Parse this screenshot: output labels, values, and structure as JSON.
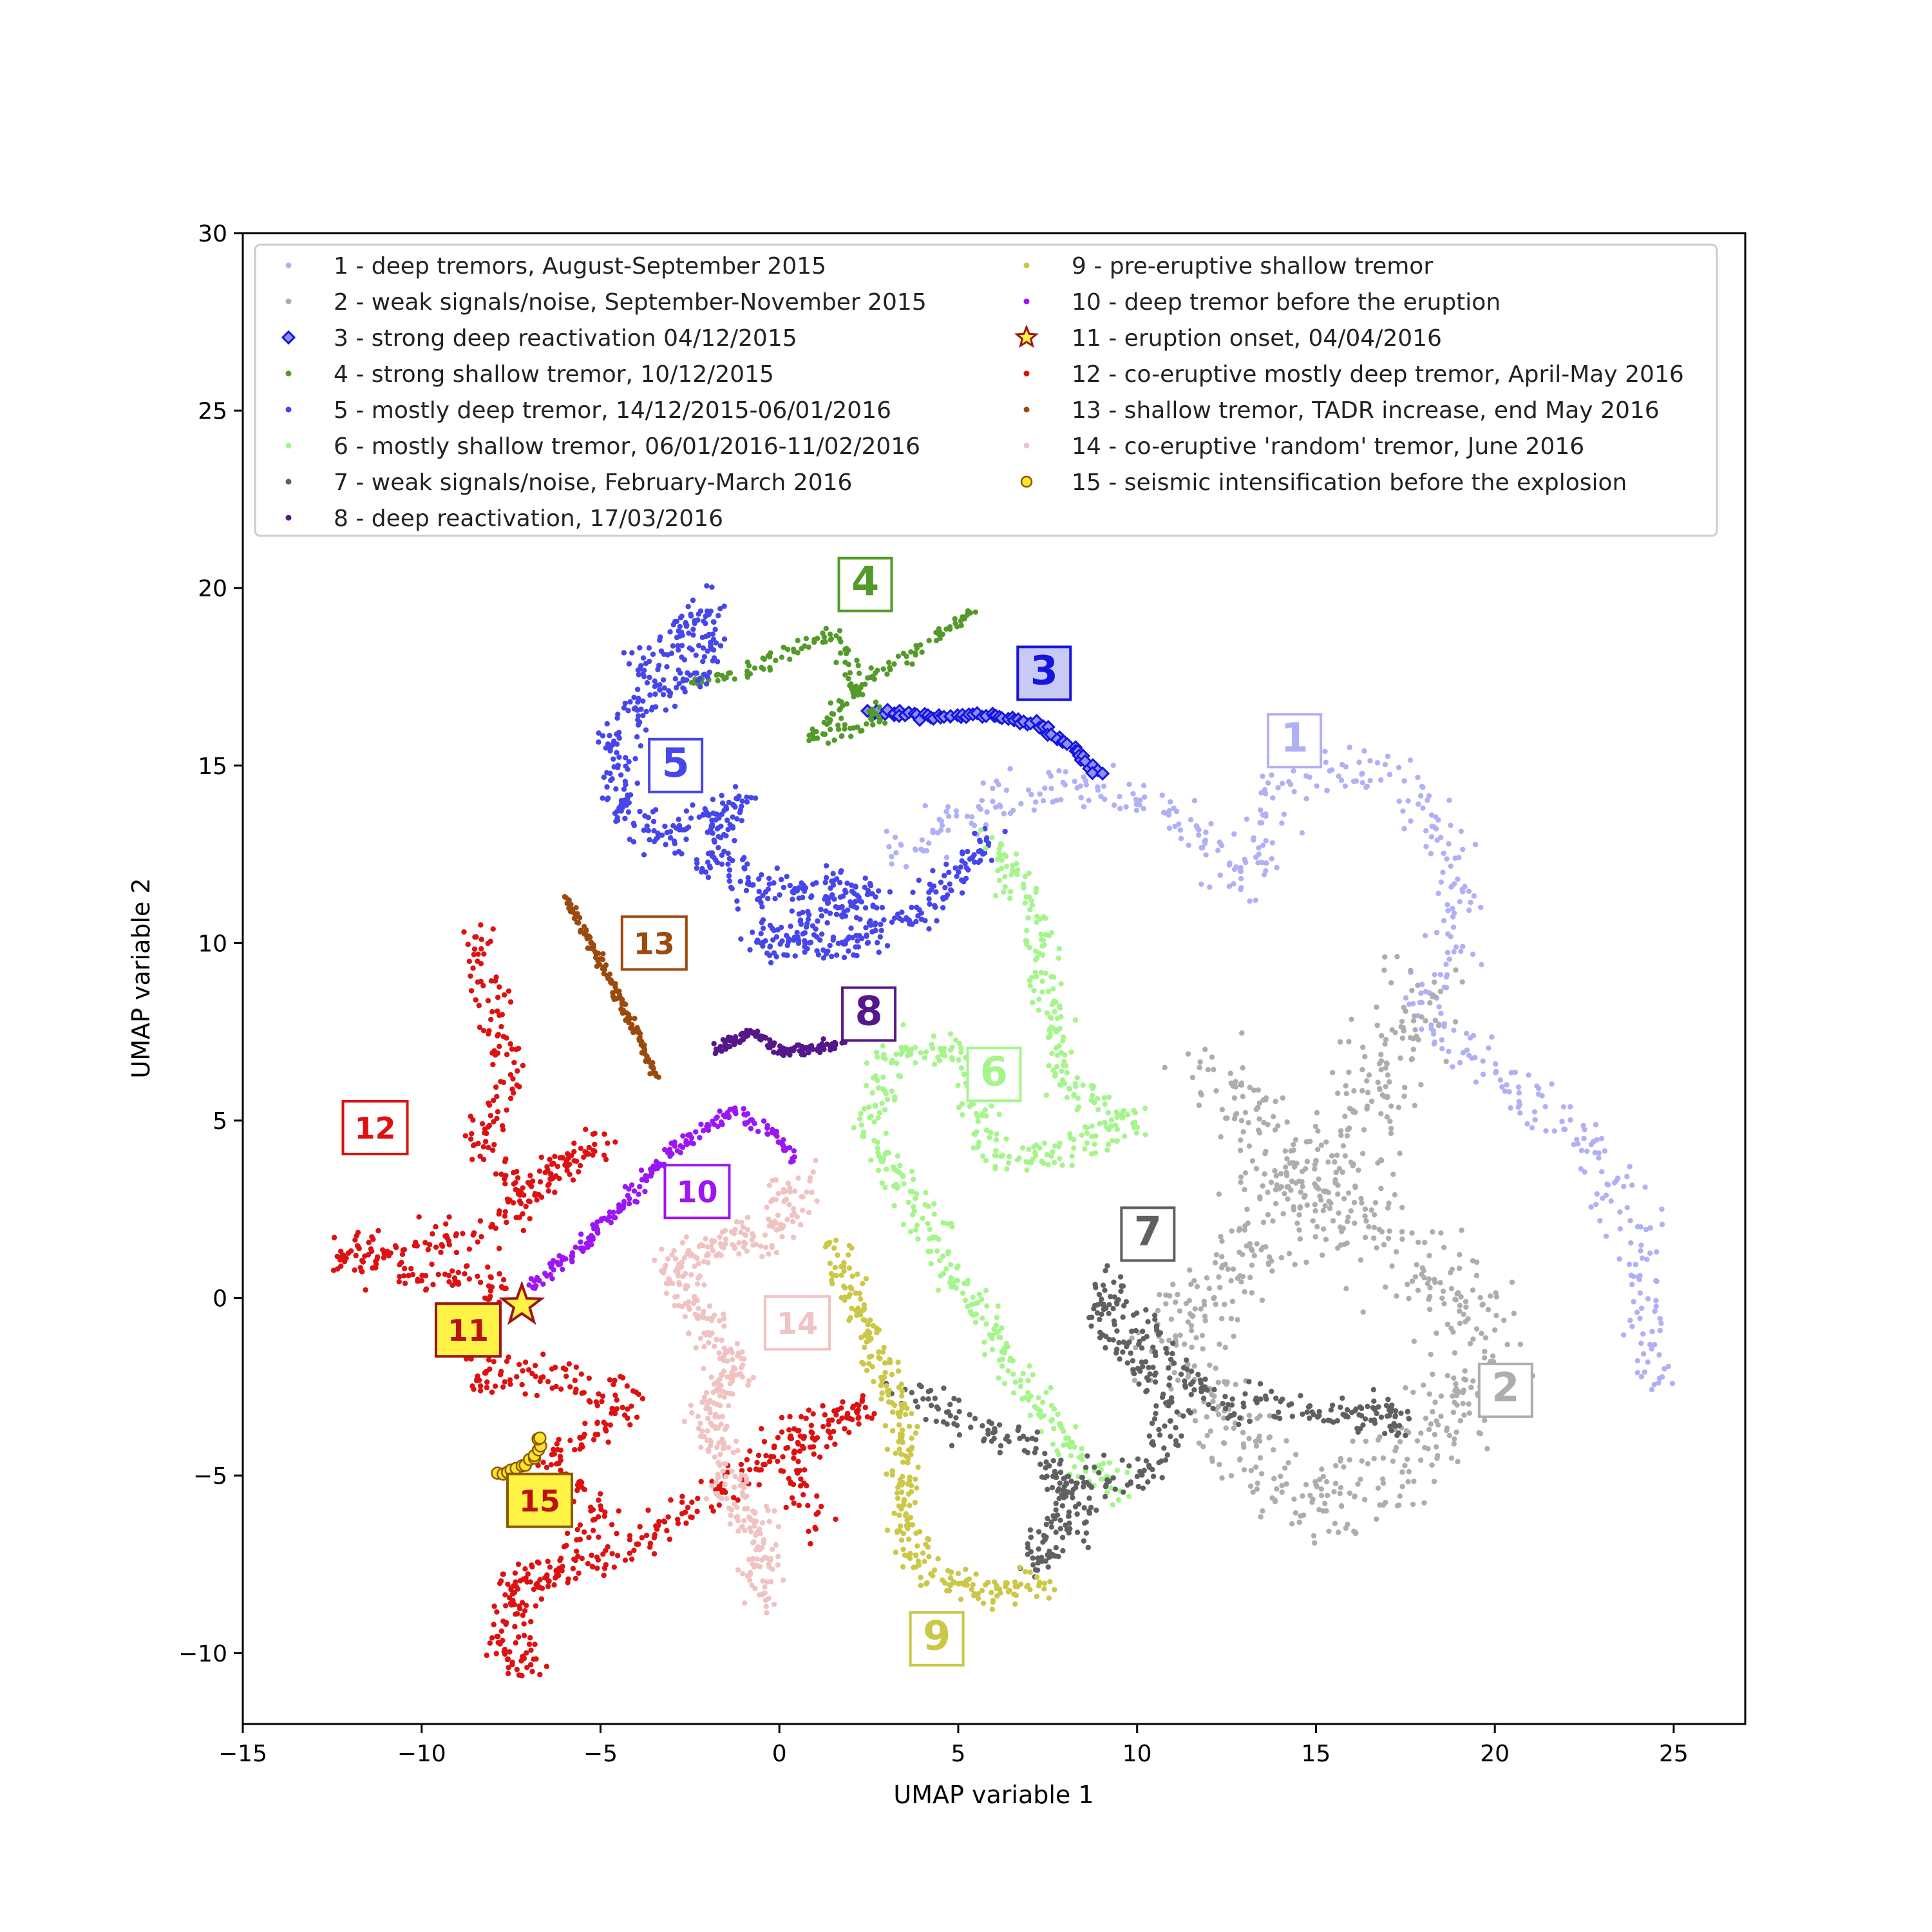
{
  "chart_data": {
    "type": "scatter",
    "xlabel": "UMAP variable 1",
    "ylabel": "UMAP variable 2",
    "xlim": [
      -15,
      27
    ],
    "ylim": [
      -12,
      30
    ],
    "xticks": [
      -15,
      -10,
      -5,
      0,
      5,
      10,
      15,
      20,
      25
    ],
    "yticks": [
      -10,
      -5,
      0,
      5,
      10,
      15,
      20,
      25,
      30
    ],
    "xtick_labels": [
      "−15",
      "−10",
      "−5",
      "0",
      "5",
      "10",
      "15",
      "20",
      "25"
    ],
    "ytick_labels": [
      "−10",
      "−5",
      "0",
      "5",
      "10",
      "15",
      "20",
      "25",
      "30"
    ],
    "grid": false,
    "legend_position": "top",
    "series": [
      {
        "name": "1 - deep tremors, August-September 2015",
        "label": "1",
        "color": "#b0b0f6",
        "marker": "dot",
        "path": [
          [
            3,
            12.5
          ],
          [
            6,
            14
          ],
          [
            9,
            14.5
          ],
          [
            12,
            13
          ],
          [
            13,
            11.5
          ],
          [
            14,
            14.5
          ],
          [
            16,
            15
          ],
          [
            18,
            14
          ],
          [
            19,
            11
          ],
          [
            18,
            8
          ],
          [
            21,
            5.5
          ],
          [
            23,
            4
          ],
          [
            24,
            2
          ],
          [
            24.5,
            -2.5
          ]
        ],
        "spread": 0.7,
        "count": 500,
        "label_at": [
          14.4,
          15.7
        ],
        "label_style": "plain"
      },
      {
        "name": "2 - weak signals/noise, September-November 2015",
        "label": "2",
        "color": "#adadad",
        "marker": "dot",
        "path": [
          [
            12,
            6.5
          ],
          [
            14,
            4
          ],
          [
            16,
            2
          ],
          [
            18,
            1
          ],
          [
            20,
            -1
          ],
          [
            19,
            -3
          ],
          [
            17,
            -5
          ],
          [
            15,
            -6
          ],
          [
            12,
            -3
          ],
          [
            10.8,
            -1
          ],
          [
            13,
            1
          ],
          [
            15,
            3.5
          ],
          [
            17,
            6
          ],
          [
            18,
            9
          ]
        ],
        "spread": 1.3,
        "count": 800,
        "label_at": [
          20.3,
          -2.6
        ],
        "label_style": "plain"
      },
      {
        "name": "3 - strong deep reactivation 04/12/2015",
        "label": "3",
        "color": "#1515e0",
        "marker": "diamond",
        "path": [
          [
            2.5,
            16.5
          ],
          [
            4,
            16.4
          ],
          [
            6,
            16.4
          ],
          [
            7.2,
            16.2
          ],
          [
            8.2,
            15.5
          ],
          [
            9,
            14.7
          ]
        ],
        "spread": 0.1,
        "count": 70,
        "label_at": [
          7.4,
          17.6
        ],
        "label_style": "filled",
        "label_fill": "#c9c9f5"
      },
      {
        "name": "4 - strong shallow tremor, 10/12/2015",
        "label": "4",
        "color": "#549a2a",
        "marker": "dot",
        "path": [
          [
            -2.5,
            17.3
          ],
          [
            -0.5,
            17.8
          ],
          [
            1.5,
            18.8
          ],
          [
            2,
            17.5
          ],
          [
            2.8,
            16.2
          ],
          [
            0.8,
            15.8
          ],
          [
            2.4,
            17.4
          ],
          [
            4,
            18.3
          ],
          [
            5.5,
            19.5
          ]
        ],
        "spread": 0.25,
        "count": 200,
        "label_at": [
          2.4,
          20.1
        ],
        "label_style": "plain"
      },
      {
        "name": "5 - mostly deep tremor, 14/12/2015-06/01/2016",
        "label": "5",
        "color": "#4646ea",
        "marker": "dot",
        "path": [
          [
            -4,
            17.5
          ],
          [
            -3.5,
            18
          ],
          [
            -2,
            19.5
          ],
          [
            -2,
            18
          ],
          [
            -3.5,
            17
          ],
          [
            -4.5,
            16
          ],
          [
            -4.5,
            14
          ],
          [
            -3.5,
            13
          ],
          [
            -2,
            13.5
          ],
          [
            -1,
            14
          ],
          [
            -2,
            12.5
          ],
          [
            -0.5,
            11.5
          ],
          [
            1,
            11.5
          ],
          [
            2.5,
            11.5
          ],
          [
            -0.5,
            10
          ],
          [
            2,
            10
          ],
          [
            4,
            11
          ],
          [
            6,
            13
          ]
        ],
        "spread": 0.55,
        "count": 700,
        "label_at": [
          -2.9,
          15.0
        ],
        "label_style": "plain"
      },
      {
        "name": "6 - mostly shallow tremor, 06/01/2016-11/02/2016",
        "label": "6",
        "color": "#a5f58c",
        "marker": "dot",
        "path": [
          [
            6,
            13
          ],
          [
            7,
            11
          ],
          [
            7.5,
            8.5
          ],
          [
            8,
            6
          ],
          [
            10,
            5
          ],
          [
            8,
            4
          ],
          [
            6,
            4
          ],
          [
            5,
            7
          ],
          [
            3,
            7
          ],
          [
            2.5,
            4.5
          ],
          [
            4,
            2.5
          ],
          [
            4.5,
            1
          ],
          [
            5.5,
            0
          ],
          [
            6.5,
            -2
          ],
          [
            8,
            -4
          ],
          [
            9.5,
            -5.5
          ]
        ],
        "spread": 0.5,
        "count": 600,
        "label_at": [
          6.0,
          6.3
        ],
        "label_style": "plain"
      },
      {
        "name": "7 - weak signals/noise, February-March 2016",
        "label": "7",
        "color": "#606060",
        "marker": "dot",
        "path": [
          [
            3.5,
            -2.5
          ],
          [
            5,
            -3.5
          ],
          [
            7,
            -4
          ],
          [
            8.5,
            -6
          ],
          [
            7,
            -7.5
          ],
          [
            8.5,
            -5
          ],
          [
            10.5,
            -5
          ],
          [
            11,
            -3
          ],
          [
            9,
            -1
          ],
          [
            9,
            0.5
          ],
          [
            11,
            -2
          ],
          [
            12.5,
            -3
          ],
          [
            14,
            -3
          ],
          [
            17.5,
            -3.5
          ],
          [
            16,
            -3
          ]
        ],
        "spread": 0.55,
        "count": 500,
        "label_at": [
          10.3,
          1.8
        ],
        "label_style": "plain"
      },
      {
        "name": "8 - deep reactivation, 17/03/2016",
        "label": "8",
        "color": "#55178a",
        "marker": "dot",
        "path": [
          [
            -1.8,
            7
          ],
          [
            -0.8,
            7.5
          ],
          [
            0,
            7
          ],
          [
            1,
            7
          ],
          [
            1.7,
            7.2
          ]
        ],
        "spread": 0.15,
        "count": 120,
        "label_at": [
          2.5,
          8.0
        ],
        "label_style": "plain"
      },
      {
        "name": "9 - pre-eruptive shallow tremor",
        "label": "9",
        "color": "#cbc747",
        "marker": "dot",
        "path": [
          [
            1.5,
            1.5
          ],
          [
            2.5,
            -1
          ],
          [
            3.5,
            -3.5
          ],
          [
            3.5,
            -5.5
          ],
          [
            3.8,
            -7.5
          ],
          [
            5.5,
            -8.3
          ],
          [
            7.5,
            -8
          ]
        ],
        "spread": 0.45,
        "count": 300,
        "label_at": [
          4.4,
          -9.6
        ],
        "label_style": "plain"
      },
      {
        "name": "10 - deep tremor before the eruption",
        "label": "10",
        "color": "#9b16f2",
        "marker": "dot",
        "path": [
          [
            -7,
            0.3
          ],
          [
            -5.5,
            1.5
          ],
          [
            -4.5,
            2.5
          ],
          [
            -3,
            4.2
          ],
          [
            -1.2,
            5.3
          ],
          [
            0,
            4.5
          ],
          [
            0.4,
            3.8
          ]
        ],
        "spread": 0.2,
        "count": 200,
        "label_at": [
          -2.3,
          3.0
        ],
        "label_style": "plain"
      },
      {
        "name": "11 - eruption onset, 04/04/2016",
        "label": "11",
        "color": "#a01414",
        "marker": "star",
        "fill": "#fff445",
        "path": [
          [
            -7.2,
            -0.2
          ]
        ],
        "spread": 0,
        "count": 1,
        "label_at": [
          -8.7,
          -0.9
        ],
        "label_style": "filled",
        "label_fill": "#fff445",
        "label_color": "#bb1111"
      },
      {
        "name": "12 - co-eruptive mostly deep tremor, April-May 2016",
        "label": "12",
        "color": "#dd1111",
        "marker": "dot",
        "path": [
          [
            -8.5,
            10.5
          ],
          [
            -8,
            8
          ],
          [
            -7.5,
            6
          ],
          [
            -8.5,
            4.5
          ],
          [
            -7,
            3
          ],
          [
            -5,
            4.5
          ],
          [
            -8,
            2
          ],
          [
            -10,
            1.5
          ],
          [
            -12.5,
            1.3
          ],
          [
            -10,
            0.5
          ],
          [
            -8,
            0.5
          ],
          [
            -8.5,
            -2.5
          ],
          [
            -7,
            -2
          ],
          [
            -5,
            -2.5
          ],
          [
            -4,
            -3
          ],
          [
            -6.5,
            -4.5
          ],
          [
            -5,
            -6
          ],
          [
            -5.5,
            -7
          ],
          [
            -7,
            -8
          ],
          [
            -8,
            -9.5
          ],
          [
            -7,
            -10.5
          ],
          [
            -7.5,
            -8
          ],
          [
            -5,
            -7.5
          ],
          [
            -1,
            -5
          ],
          [
            1,
            -4
          ],
          [
            2.5,
            -3
          ],
          [
            0,
            -4
          ],
          [
            1,
            -6.5
          ]
        ],
        "spread": 0.5,
        "count": 900,
        "label_at": [
          -11.3,
          4.8
        ],
        "label_style": "plain"
      },
      {
        "name": "13 - shallow tremor, TADR increase, end May 2016",
        "label": "13",
        "color": "#9b4a0e",
        "marker": "dot",
        "path": [
          [
            -6,
            11.3
          ],
          [
            -5,
            9.5
          ],
          [
            -4,
            7.5
          ],
          [
            -3.4,
            6.2
          ]
        ],
        "spread": 0.12,
        "count": 130,
        "label_at": [
          -3.5,
          10.0
        ],
        "label_style": "plain"
      },
      {
        "name": "14 - co-eruptive 'random' tremor, June 2016",
        "label": "14",
        "color": "#f0c3c3",
        "marker": "dot",
        "path": [
          [
            0.5,
            3.5
          ],
          [
            0,
            2
          ],
          [
            -1.5,
            1.5
          ],
          [
            -3,
            1
          ],
          [
            -2,
            -1
          ],
          [
            -1,
            -2
          ],
          [
            -2,
            -3
          ],
          [
            -1.5,
            -5
          ],
          [
            -0.5,
            -6.5
          ],
          [
            -0.5,
            -8.5
          ]
        ],
        "spread": 0.6,
        "count": 450,
        "label_at": [
          0.5,
          -0.7
        ],
        "label_style": "plain"
      },
      {
        "name": "15 - seismic intensification before the explosion",
        "label": "15",
        "color": "#8a5a00",
        "marker": "circle",
        "fill": "#ffe22c",
        "path": [
          [
            -7.9,
            -5
          ],
          [
            -7.4,
            -4.8
          ],
          [
            -6.9,
            -4.6
          ],
          [
            -6.7,
            -4.1
          ],
          [
            -6.75,
            -3.8
          ]
        ],
        "spread": 0.06,
        "count": 14,
        "label_at": [
          -6.7,
          -5.7
        ],
        "label_style": "filled",
        "label_fill": "#fff445",
        "label_color": "#bb1111"
      }
    ]
  }
}
